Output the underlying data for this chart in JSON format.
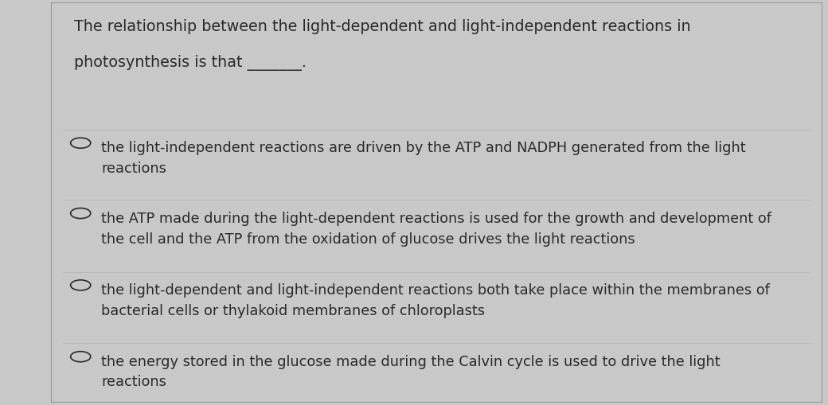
{
  "bg_outer": "#c8c8c8",
  "bg_card": "#e4e4e2",
  "text_color": "#2a2a2a",
  "divider_color": "#b8b8b8",
  "circle_color": "#2a2a2a",
  "question_line1": "The relationship between the light-dependent and light-independent reactions in",
  "question_line2": "photosynthesis is that _______.",
  "question_fontsize": 13.8,
  "options": [
    "the light-independent reactions are driven by the ATP and NADPH generated from the light\nreactions",
    "the ATP made during the light-dependent reactions is used for the growth and development of\nthe cell and the ATP from the oxidation of glucose drives the light reactions",
    "the light-dependent and light-independent reactions both take place within the membranes of\nbacterial cells or thylakoid membranes of chloroplasts",
    "the energy stored in the glucose made during the Calvin cycle is used to drive the light\nreactions"
  ],
  "option_fontsize": 12.8,
  "fig_width": 10.4,
  "fig_height": 5.1,
  "dpi": 100
}
